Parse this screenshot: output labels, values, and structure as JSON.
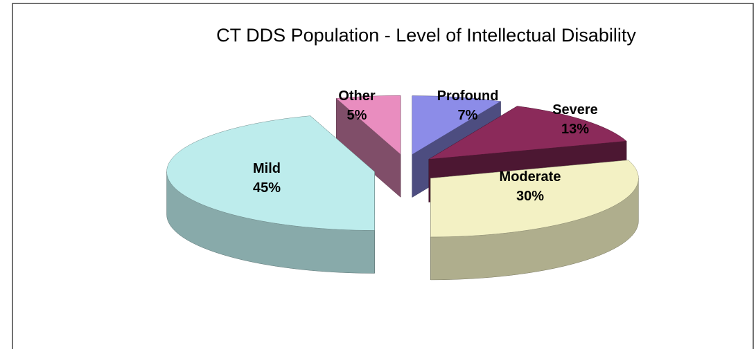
{
  "chart_data": {
    "type": "pie",
    "title": "CT DDS Population - Level of Intellectual Disability",
    "categories": [
      "Profound",
      "Severe",
      "Moderate",
      "Mild",
      "Other"
    ],
    "values": [
      7,
      13,
      30,
      45,
      5
    ],
    "value_labels": [
      "7%",
      "13%",
      "30%",
      "45%",
      "5%"
    ],
    "colors": [
      "#8c8ce8",
      "#8b2a5a",
      "#f3f1c4",
      "#bdecec",
      "#e98dbf"
    ]
  }
}
